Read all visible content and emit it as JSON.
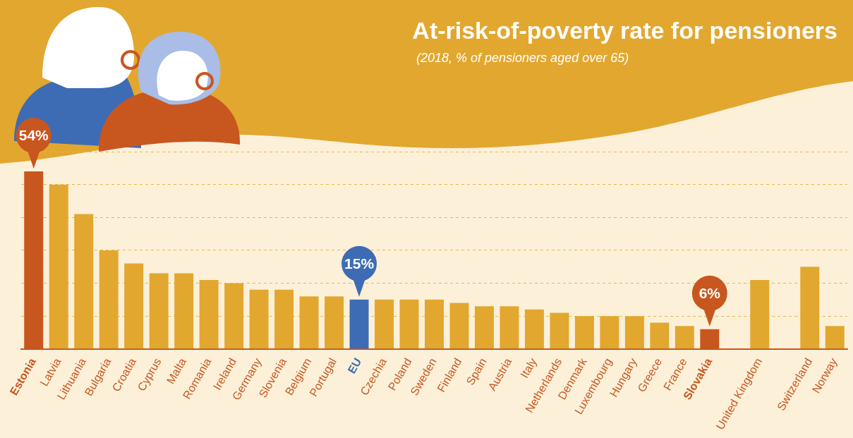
{
  "chart_data": {
    "type": "bar",
    "title": "At-risk-of-poverty rate for pensioners",
    "subtitle": "(2018, % of pensioners aged over 65)",
    "categories": [
      "Estonia",
      "Latvia",
      "Lithuania",
      "Bulgaria",
      "Croatia",
      "Cyprus",
      "Malta",
      "Romania",
      "Ireland",
      "Germany",
      "Slovenia",
      "Belgium",
      "Portugal",
      "EU",
      "Czechia",
      "Poland",
      "Sweden",
      "Finland",
      "Spain",
      "Austria",
      "Italy",
      "Netherlands",
      "Denmark",
      "Luxembourg",
      "Hungary",
      "Greece",
      "France",
      "Slovakia",
      null,
      "United Kingdom",
      null,
      "Switzerland",
      "Norway"
    ],
    "values": [
      54,
      50,
      41,
      30,
      26,
      23,
      23,
      21,
      20,
      18,
      18,
      16,
      16,
      15,
      15,
      15,
      15,
      14,
      13,
      13,
      12,
      11,
      10,
      10,
      10,
      8,
      7,
      6,
      null,
      21,
      null,
      25,
      7
    ],
    "colors": [
      "#c8561f",
      "#e2a72e",
      "#e2a72e",
      "#e2a72e",
      "#e2a72e",
      "#e2a72e",
      "#e2a72e",
      "#e2a72e",
      "#e2a72e",
      "#e2a72e",
      "#e2a72e",
      "#e2a72e",
      "#e2a72e",
      "#3d6cb4",
      "#e2a72e",
      "#e2a72e",
      "#e2a72e",
      "#e2a72e",
      "#e2a72e",
      "#e2a72e",
      "#e2a72e",
      "#e2a72e",
      "#e2a72e",
      "#e2a72e",
      "#e2a72e",
      "#e2a72e",
      "#e2a72e",
      "#c8561f",
      "#e2a72e",
      "#e2a72e",
      "#e2a72e",
      "#e2a72e",
      "#e2a72e"
    ],
    "annotations": [
      {
        "category": "Estonia",
        "label": "54%"
      },
      {
        "category": "EU",
        "label": "15%"
      },
      {
        "category": "Slovakia",
        "label": "6%"
      }
    ],
    "ylim": [
      0,
      60
    ],
    "yticks": [
      0,
      10,
      20,
      30,
      40,
      50,
      60
    ],
    "grid": true,
    "tick_labels": "x"
  }
}
